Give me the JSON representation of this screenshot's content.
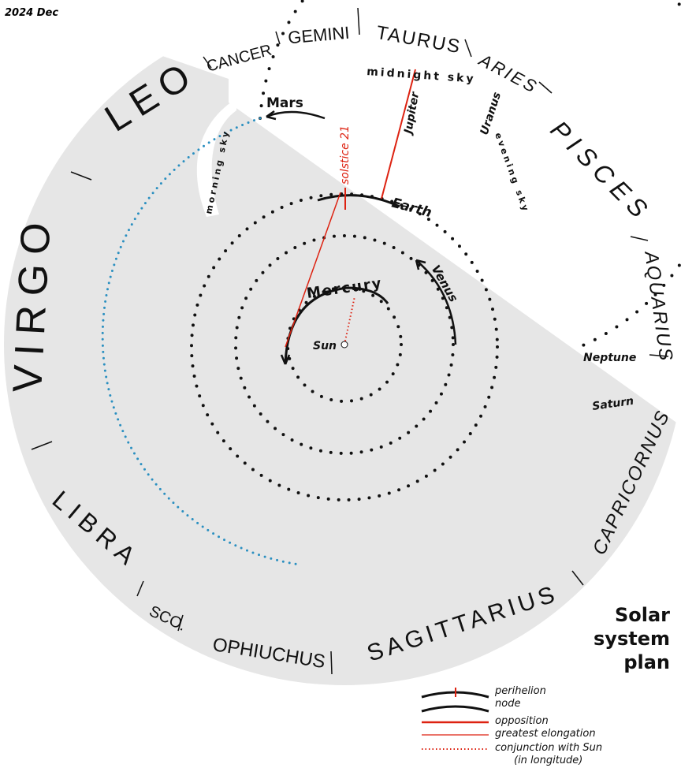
{
  "header": {
    "date": "2024 Dec"
  },
  "title": [
    "Solar",
    "system",
    "plan"
  ],
  "zodiac": [
    "CANCER",
    "GEMINI",
    "TAURUS",
    "ARIES",
    "PISCES",
    "AQUARIUS",
    "CAPRICORNUS",
    "SAGITTARIUS",
    "OPHIUCHUS",
    "SCO.",
    "LIBRA",
    "VIRGO",
    "LEO"
  ],
  "labels": {
    "midnight": "midnight sky",
    "morning": "morning sky",
    "evening": "evening sky",
    "mars": "Mars",
    "jupiter": "Jupiter",
    "uranus": "Uranus",
    "solstice": "solstice 21",
    "earth": "Earth",
    "venus": "Venus",
    "mercury": "Mercury",
    "sun": "Sun",
    "neptune": "Neptune",
    "saturn": "Saturn"
  },
  "legend": [
    "perihelion",
    "node",
    "opposition",
    "greatest elongation",
    "conjunction with Sun",
    "(in longitude)"
  ]
}
